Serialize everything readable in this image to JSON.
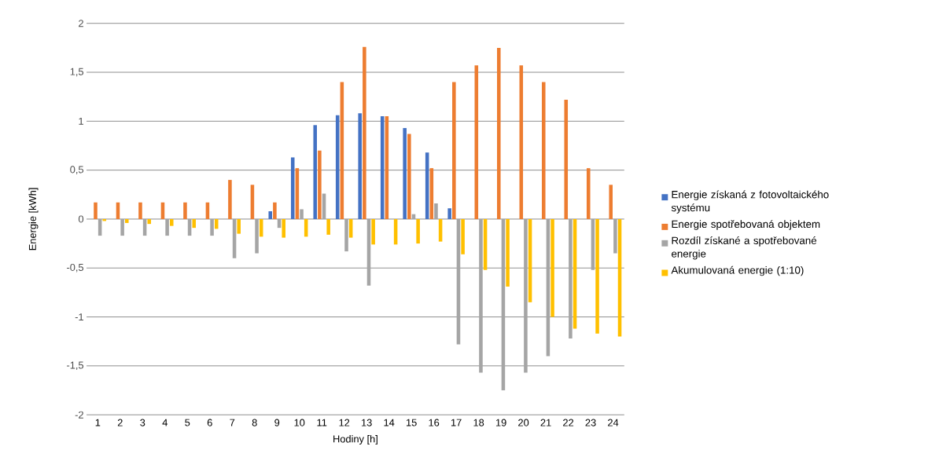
{
  "chart_data": {
    "type": "bar",
    "xlabel": "Hodiny [h]",
    "ylabel": "Energie [kWh]",
    "categories": [
      "1",
      "2",
      "3",
      "4",
      "5",
      "6",
      "7",
      "8",
      "9",
      "10",
      "11",
      "12",
      "13",
      "14",
      "15",
      "16",
      "17",
      "18",
      "19",
      "20",
      "21",
      "22",
      "23",
      "24"
    ],
    "series": [
      {
        "name": "Energie získaná z fotovoltaického systému",
        "color": "#4472c4",
        "values": [
          0,
          0,
          0,
          0,
          0,
          0,
          0,
          0,
          0.08,
          0.63,
          0.96,
          1.06,
          1.08,
          1.05,
          0.93,
          0.68,
          0.11,
          0,
          0,
          0,
          0,
          0,
          0,
          0
        ]
      },
      {
        "name": "Energie spotřebovaná objektem",
        "color": "#ed7d31",
        "values": [
          0.17,
          0.17,
          0.17,
          0.17,
          0.17,
          0.17,
          0.4,
          0.35,
          0.17,
          0.52,
          0.7,
          1.4,
          1.76,
          1.05,
          0.87,
          0.52,
          1.4,
          1.57,
          1.75,
          1.57,
          1.4,
          1.22,
          0.52,
          0.35
        ]
      },
      {
        "name": "Rozdíl získané a spotřebované energie",
        "color": "#a5a5a5",
        "values": [
          -0.17,
          -0.17,
          -0.17,
          -0.17,
          -0.17,
          -0.17,
          -0.4,
          -0.35,
          -0.09,
          0.1,
          0.26,
          -0.33,
          -0.68,
          0,
          0.05,
          0.16,
          -1.28,
          -1.57,
          -1.75,
          -1.57,
          -1.4,
          -1.22,
          -0.52,
          -0.35
        ]
      },
      {
        "name": "Akumulovaná energie (1:10)",
        "color": "#ffc000",
        "values": [
          -0.02,
          -0.04,
          -0.05,
          -0.07,
          -0.09,
          -0.1,
          -0.15,
          -0.18,
          -0.19,
          -0.18,
          -0.16,
          -0.19,
          -0.26,
          -0.26,
          -0.25,
          -0.23,
          -0.36,
          -0.52,
          -0.69,
          -0.85,
          -1.0,
          -1.12,
          -1.17,
          -1.2
        ]
      }
    ],
    "ylim": [
      -2,
      2
    ],
    "yticks": [
      -2,
      {
        "value": -1.5,
        "label": "-1,5"
      },
      -1,
      {
        "value": -0.5,
        "label": "-0,5"
      },
      0,
      {
        "value": 0.5,
        "label": "0,5"
      },
      1,
      {
        "value": 1.5,
        "label": "1,5"
      },
      2
    ],
    "grid": "y",
    "legend": "right"
  }
}
